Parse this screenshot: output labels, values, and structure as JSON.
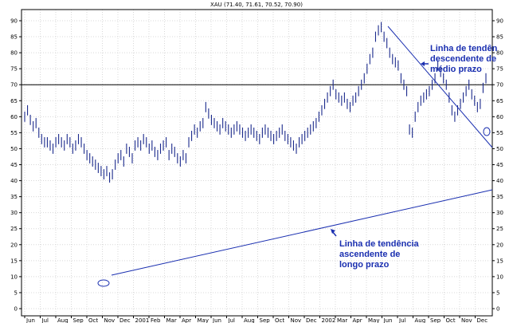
{
  "chart_data": {
    "type": "line",
    "title": "XAU (71.40, 71.61, 70.52, 70.90)",
    "ylim": [
      0,
      90
    ],
    "yticks": [
      0,
      5,
      10,
      15,
      20,
      25,
      30,
      35,
      40,
      45,
      50,
      55,
      60,
      65,
      70,
      75,
      80,
      85,
      90
    ],
    "months": [
      "Jun",
      "Jul",
      "Aug",
      "Sep",
      "Oct",
      "Nov",
      "Dec",
      "2001",
      "Feb",
      "Mar",
      "Apr",
      "May",
      "Jun",
      "Jul",
      "Aug",
      "Sep",
      "Oct",
      "Nov",
      "Dec",
      "2002",
      "Mar",
      "Apr",
      "May",
      "Jun",
      "Jul",
      "Aug",
      "Sep",
      "Oct",
      "Nov",
      "Dec"
    ],
    "reference_line": 70,
    "series": [
      {
        "values": [
          60,
          62,
          59,
          57,
          58,
          55,
          53,
          52,
          52,
          51,
          50,
          52,
          53,
          52,
          51,
          53,
          52,
          50,
          51,
          53,
          52,
          50,
          48,
          47,
          46,
          45,
          44,
          43,
          42,
          43,
          41,
          42,
          45,
          47,
          48,
          46,
          50,
          49,
          47,
          51,
          52,
          51,
          53,
          52,
          50,
          51,
          49,
          48,
          50,
          51,
          52,
          48,
          50,
          49,
          47,
          46,
          48,
          47,
          52,
          54,
          56,
          55,
          57,
          58,
          63,
          61,
          59,
          58,
          57,
          56,
          58,
          57,
          56,
          55,
          56,
          57,
          56,
          55,
          54,
          55,
          56,
          55,
          54,
          53,
          55,
          56,
          55,
          54,
          53,
          54,
          55,
          56,
          54,
          53,
          52,
          51,
          50,
          52,
          53,
          54,
          55,
          56,
          57,
          58,
          60,
          62,
          64,
          66,
          68,
          70,
          67,
          66,
          65,
          66,
          64,
          63,
          65,
          66,
          68,
          70,
          72,
          75,
          78,
          80,
          85,
          87,
          88,
          85,
          83,
          80,
          78,
          77,
          76,
          72,
          70,
          68,
          56,
          55,
          60,
          63,
          65,
          66,
          67,
          68,
          70,
          72,
          76,
          74,
          72,
          70,
          66,
          62,
          60,
          62,
          64,
          66,
          68,
          70,
          67,
          65,
          63,
          64,
          69,
          72
        ]
      }
    ],
    "annotations": [
      {
        "text": "Linha de tendên",
        "text2": "descendente de",
        "text3": "médio prazo"
      },
      {
        "text": "Linha de tendência",
        "text2": "ascendente de",
        "text3": "longo prazo"
      }
    ]
  }
}
